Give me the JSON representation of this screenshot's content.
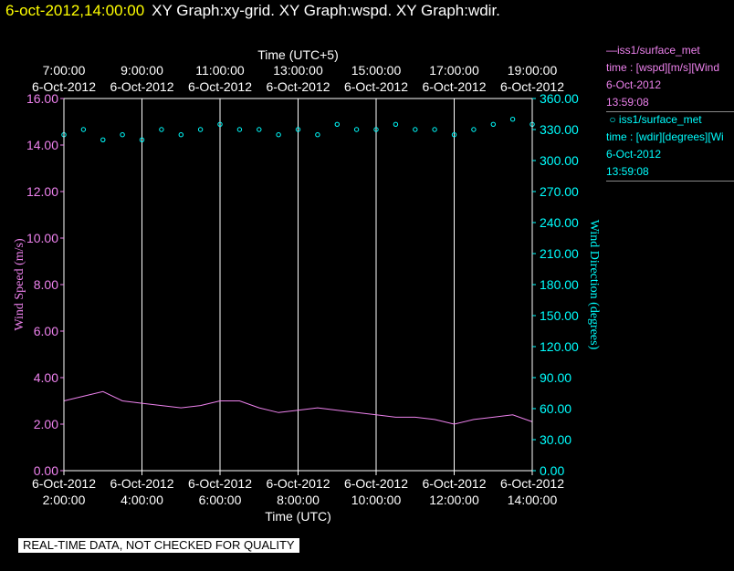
{
  "header": {
    "timestamp": "6-oct-2012,14:00:00",
    "graphs": "XY Graph:xy-grid.  XY Graph:wspd.  XY Graph:wdir."
  },
  "legend": {
    "wspd": {
      "name": "iss1/surface_met",
      "line2": "time : [wspd][m/s][Wind",
      "date": "6-Oct-2012",
      "time": "13:59:08",
      "color": "#ee82ee",
      "symbol": "line"
    },
    "wdir": {
      "name": "iss1/surface_met",
      "line2": "time : [wdir][degrees][Wi",
      "date": "6-Oct-2012",
      "time": "13:59:08",
      "color": "#00ffff",
      "symbol": "circle"
    }
  },
  "footer": {
    "note": "REAL-TIME DATA, NOT CHECKED FOR QUALITY"
  },
  "chart_data": {
    "type": "line",
    "x_range_utc_hours": [
      2,
      14
    ],
    "grid": true,
    "top_axis_label": "Time (UTC+5)",
    "top_ticks": [
      {
        "time": "7:00:00",
        "date": "6-Oct-2012"
      },
      {
        "time": "9:00:00",
        "date": "6-Oct-2012"
      },
      {
        "time": "11:00:00",
        "date": "6-Oct-2012"
      },
      {
        "time": "13:00:00",
        "date": "6-Oct-2012"
      },
      {
        "time": "15:00:00",
        "date": "6-Oct-2012"
      },
      {
        "time": "17:00:00",
        "date": "6-Oct-2012"
      },
      {
        "time": "19:00:00",
        "date": "6-Oct-2012"
      }
    ],
    "bottom_axis_label": "Time (UTC)",
    "bottom_ticks": [
      {
        "time": "2:00:00",
        "date": "6-Oct-2012"
      },
      {
        "time": "4:00:00",
        "date": "6-Oct-2012"
      },
      {
        "time": "6:00:00",
        "date": "6-Oct-2012"
      },
      {
        "time": "8:00:00",
        "date": "6-Oct-2012"
      },
      {
        "time": "10:00:00",
        "date": "6-Oct-2012"
      },
      {
        "time": "12:00:00",
        "date": "6-Oct-2012"
      },
      {
        "time": "14:00:00",
        "date": "6-Oct-2012"
      }
    ],
    "left_axis": {
      "label": "Wind Speed (m/s)",
      "ylim": [
        0,
        16
      ],
      "ticks": [
        "0.00",
        "2.00",
        "4.00",
        "6.00",
        "8.00",
        "10.00",
        "12.00",
        "14.00",
        "16.00"
      ],
      "color": "#ee82ee"
    },
    "right_axis": {
      "label": "Wind Direction (degrees)",
      "ylim": [
        0,
        360
      ],
      "ticks": [
        "0.00",
        "30.00",
        "60.00",
        "90.00",
        "120.00",
        "150.00",
        "180.00",
        "210.00",
        "240.00",
        "270.00",
        "300.00",
        "330.00",
        "360.00"
      ],
      "color": "#00ffff"
    },
    "series": [
      {
        "name": "iss1/surface_met wspd",
        "style": "line",
        "axis": "left",
        "x": [
          2.0,
          2.5,
          3.0,
          3.5,
          4.0,
          4.5,
          5.0,
          5.5,
          6.0,
          6.5,
          7.0,
          7.5,
          8.0,
          8.5,
          9.0,
          9.5,
          10.0,
          10.5,
          11.0,
          11.5,
          12.0,
          12.5,
          13.0,
          13.5,
          14.0
        ],
        "y": [
          3.0,
          3.2,
          3.4,
          3.0,
          2.9,
          2.8,
          2.7,
          2.8,
          3.0,
          3.0,
          2.7,
          2.5,
          2.6,
          2.7,
          2.6,
          2.5,
          2.4,
          2.3,
          2.3,
          2.2,
          2.0,
          2.2,
          2.3,
          2.4,
          2.1
        ]
      },
      {
        "name": "iss1/surface_met wdir",
        "style": "scatter",
        "axis": "right",
        "x": [
          2.0,
          2.5,
          3.0,
          3.5,
          4.0,
          4.5,
          5.0,
          5.5,
          6.0,
          6.5,
          7.0,
          7.5,
          8.0,
          8.5,
          9.0,
          9.5,
          10.0,
          10.5,
          11.0,
          11.5,
          12.0,
          12.5,
          13.0,
          13.5,
          14.0
        ],
        "y": [
          325,
          330,
          320,
          325,
          320,
          330,
          325,
          330,
          335,
          330,
          330,
          325,
          330,
          325,
          335,
          330,
          330,
          335,
          330,
          330,
          325,
          330,
          335,
          340,
          335
        ]
      }
    ]
  }
}
